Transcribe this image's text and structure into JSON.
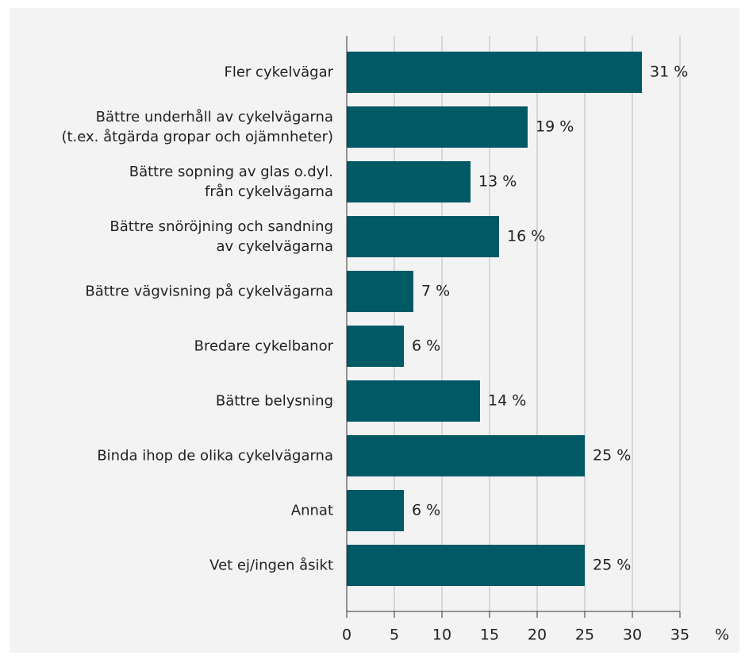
{
  "chart_data": {
    "type": "barh",
    "categories": [
      "Fler cykelvägar",
      "Bättre underhåll av cykelvägarna\n(t.ex. åtgärda gropar och ojämnheter)",
      "Bättre sopning av glas o.dyl.\nfrån cykelvägarna",
      "Bättre snöröjning och sandning\nav cykelvägarna",
      "Bättre vägvisning på cykelvägarna",
      "Bredare cykelbanor",
      "Bättre belysning",
      "Binda ihop de olika cykelvägarna",
      "Annat",
      "Vet ej/ingen åsikt"
    ],
    "values": [
      31,
      19,
      13,
      16,
      7,
      6,
      14,
      25,
      6,
      25
    ],
    "value_labels": [
      "31 %",
      "19 %",
      "13 %",
      "16 %",
      "7 %",
      "6 %",
      "14 %",
      "25 %",
      "6 %",
      "25 %"
    ],
    "color": "#005a66",
    "xlim": [
      0,
      35
    ],
    "xticks": [
      0,
      5,
      10,
      15,
      20,
      25,
      30,
      35
    ],
    "xlabel": "%",
    "grid": true
  }
}
